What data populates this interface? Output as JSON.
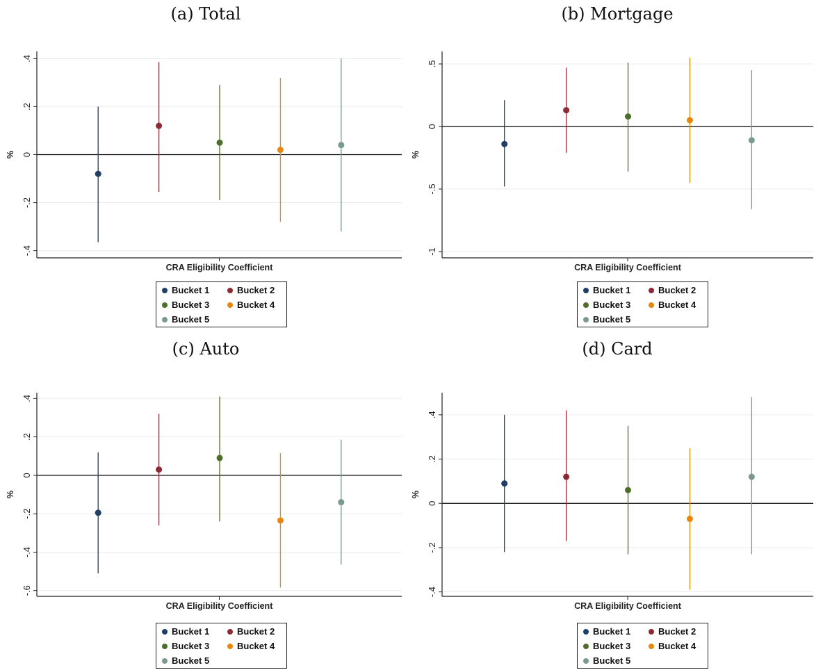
{
  "palette": {
    "bucket1": "#1f3f66",
    "bucket2": "#8b2c35",
    "bucket3": "#4e6e2b",
    "bucket4": "#e8870e",
    "bucket5": "#7a9a8c"
  },
  "chart_data": [
    {
      "type": "scatter",
      "title": "(a) Total",
      "xlabel": "CRA Eligibility Coefficient",
      "ylabel": "%",
      "ylim": [
        -0.43,
        0.43
      ],
      "yticks": [
        -0.4,
        -0.2,
        0,
        0.2,
        0.4
      ],
      "ytick_labels": [
        "-.4",
        "-.2",
        "0",
        ".2",
        ".4"
      ],
      "zero_line": true,
      "grid": true,
      "legend": [
        "Bucket 1",
        "Bucket 2",
        "Bucket 3",
        "Bucket 4",
        "Bucket 5"
      ],
      "series": [
        {
          "name": "Bucket 1",
          "value": -0.08,
          "ci": [
            -0.365,
            0.2
          ]
        },
        {
          "name": "Bucket 2",
          "value": 0.12,
          "ci": [
            -0.155,
            0.385
          ]
        },
        {
          "name": "Bucket 3",
          "value": 0.05,
          "ci": [
            -0.19,
            0.29
          ]
        },
        {
          "name": "Bucket 4",
          "value": 0.02,
          "ci": [
            -0.28,
            0.32
          ]
        },
        {
          "name": "Bucket 5",
          "value": 0.04,
          "ci": [
            -0.32,
            0.4
          ]
        }
      ]
    },
    {
      "type": "scatter",
      "title": "(b) Mortgage",
      "xlabel": "CRA Eligibility Coefficient",
      "ylabel": "%",
      "ylim": [
        -1.05,
        0.6
      ],
      "yticks": [
        -1,
        -0.5,
        0,
        0.5
      ],
      "ytick_labels": [
        "-1",
        "-.5",
        "0",
        ".5"
      ],
      "zero_line": true,
      "grid": true,
      "legend": [
        "Bucket 1",
        "Bucket 2",
        "Bucket 3",
        "Bucket 4",
        "Bucket 5"
      ],
      "series": [
        {
          "name": "Bucket 1",
          "value": -0.14,
          "ci": [
            -0.48,
            0.21
          ]
        },
        {
          "name": "Bucket 2",
          "value": 0.13,
          "ci": [
            -0.21,
            0.47
          ]
        },
        {
          "name": "Bucket 3",
          "value": 0.08,
          "ci": [
            -0.36,
            0.51
          ]
        },
        {
          "name": "Bucket 4",
          "value": 0.05,
          "ci": [
            -0.45,
            0.55
          ]
        },
        {
          "name": "Bucket 5",
          "value": -0.11,
          "ci": [
            -0.66,
            0.45
          ]
        }
      ]
    },
    {
      "type": "scatter",
      "title": "(c) Auto",
      "xlabel": "CRA Eligibility Coefficient",
      "ylabel": "%",
      "ylim": [
        -0.63,
        0.43
      ],
      "yticks": [
        -0.6,
        -0.4,
        -0.2,
        0,
        0.2,
        0.4
      ],
      "ytick_labels": [
        "-.6",
        "-.4",
        "-.2",
        "0",
        ".2",
        ".4"
      ],
      "zero_line": true,
      "grid": true,
      "legend": [
        "Bucket 1",
        "Bucket 2",
        "Bucket 3",
        "Bucket 4",
        "Bucket 5"
      ],
      "series": [
        {
          "name": "Bucket 1",
          "value": -0.195,
          "ci": [
            -0.51,
            0.12
          ]
        },
        {
          "name": "Bucket 2",
          "value": 0.03,
          "ci": [
            -0.26,
            0.32
          ]
        },
        {
          "name": "Bucket 3",
          "value": 0.09,
          "ci": [
            -0.24,
            0.41
          ]
        },
        {
          "name": "Bucket 4",
          "value": -0.235,
          "ci": [
            -0.585,
            0.115
          ]
        },
        {
          "name": "Bucket 5",
          "value": -0.14,
          "ci": [
            -0.465,
            0.185
          ]
        }
      ]
    },
    {
      "type": "scatter",
      "title": "(d) Card",
      "xlabel": "CRA Eligibility Coefficient",
      "ylabel": "%",
      "ylim": [
        -0.42,
        0.5
      ],
      "yticks": [
        -0.4,
        -0.2,
        0,
        0.2,
        0.4
      ],
      "ytick_labels": [
        "-.4",
        "-.2",
        "0",
        ".2",
        ".4"
      ],
      "zero_line": true,
      "grid": true,
      "legend": [
        "Bucket 1",
        "Bucket 2",
        "Bucket 3",
        "Bucket 4",
        "Bucket 5"
      ],
      "series": [
        {
          "name": "Bucket 1",
          "value": 0.09,
          "ci": [
            -0.22,
            0.4
          ]
        },
        {
          "name": "Bucket 2",
          "value": 0.12,
          "ci": [
            -0.17,
            0.42
          ]
        },
        {
          "name": "Bucket 3",
          "value": 0.06,
          "ci": [
            -0.23,
            0.35
          ]
        },
        {
          "name": "Bucket 4",
          "value": -0.07,
          "ci": [
            -0.39,
            0.25
          ]
        },
        {
          "name": "Bucket 5",
          "value": 0.12,
          "ci": [
            -0.23,
            0.48
          ]
        }
      ]
    }
  ]
}
